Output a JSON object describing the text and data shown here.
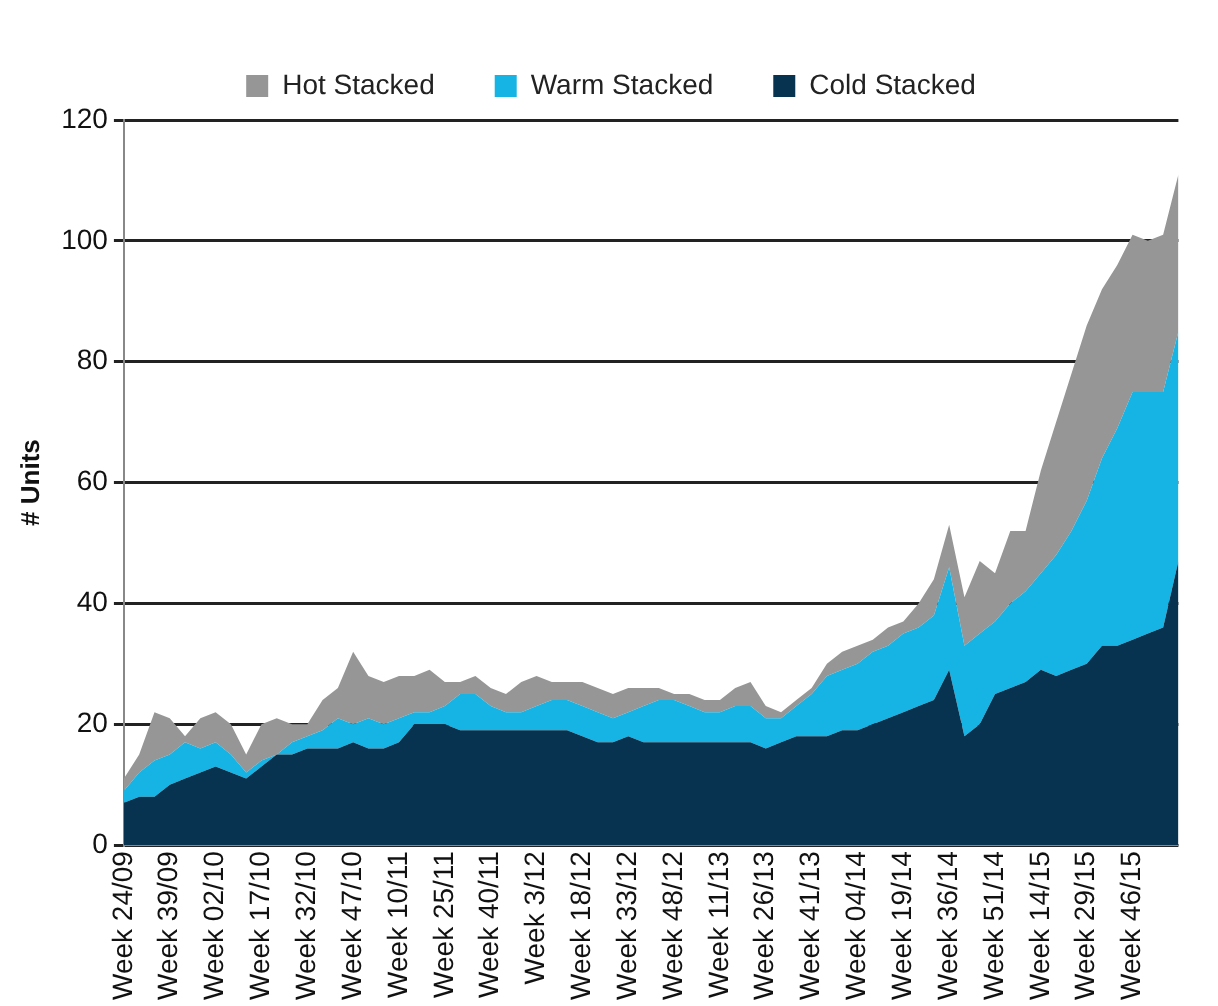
{
  "chart_data": {
    "type": "area",
    "stacked": true,
    "ylabel": "# Units",
    "categories": [
      "Week 24/09",
      null,
      null,
      "Week 39/09",
      null,
      null,
      "Week 02/10",
      null,
      null,
      "Week 17/10",
      null,
      null,
      "Week 32/10",
      null,
      null,
      "Week 47/10",
      null,
      null,
      "Week 10/11",
      null,
      null,
      "Week 25/11",
      null,
      null,
      "Week 40/11",
      null,
      null,
      "Week 3/12",
      null,
      null,
      "Week 18/12",
      null,
      null,
      "Week 33/12",
      null,
      null,
      "Week 48/12",
      null,
      null,
      "Week 11/13",
      null,
      null,
      "Week 26/13",
      null,
      null,
      "Week 41/13",
      null,
      null,
      "Week 04/14",
      null,
      null,
      "Week 19/14",
      null,
      null,
      "Week 36/14",
      null,
      null,
      "Week 51/14",
      null,
      null,
      "Week 14/15",
      null,
      null,
      "Week 29/15",
      null,
      null,
      "Week 46/15",
      null,
      null,
      null
    ],
    "series": [
      {
        "name": "Cold Stacked",
        "color": "#073350",
        "values": [
          7,
          8,
          8,
          10,
          11,
          12,
          13,
          12,
          11,
          13,
          15,
          15,
          16,
          16,
          16,
          17,
          16,
          16,
          17,
          20,
          20,
          20,
          19,
          19,
          19,
          19,
          19,
          19,
          19,
          19,
          18,
          17,
          17,
          18,
          17,
          17,
          17,
          17,
          17,
          17,
          17,
          17,
          16,
          17,
          18,
          18,
          18,
          19,
          19,
          20,
          21,
          22,
          23,
          24,
          29,
          18,
          20,
          25,
          26,
          27,
          29,
          28,
          29,
          30,
          33,
          33,
          34,
          35,
          36,
          47
        ]
      },
      {
        "name": "Warm Stacked",
        "color": "#16b4e4",
        "values": [
          2,
          4,
          6,
          5,
          6,
          4,
          4,
          3,
          1,
          1,
          0,
          2,
          2,
          3,
          5,
          3,
          5,
          4,
          4,
          2,
          2,
          3,
          6,
          6,
          4,
          3,
          3,
          4,
          5,
          5,
          5,
          5,
          4,
          4,
          6,
          7,
          7,
          6,
          5,
          5,
          6,
          6,
          5,
          4,
          5,
          7,
          10,
          10,
          11,
          12,
          12,
          13,
          13,
          14,
          17,
          15,
          15,
          12,
          14,
          15,
          16,
          20,
          23,
          27,
          31,
          36,
          41,
          40,
          39,
          38
        ]
      },
      {
        "name": "Hot Stacked",
        "color": "#969696",
        "values": [
          2,
          3,
          8,
          6,
          1,
          5,
          5,
          5,
          3,
          6,
          6,
          3,
          2,
          5,
          5,
          12,
          7,
          7,
          7,
          6,
          7,
          4,
          2,
          3,
          3,
          3,
          5,
          5,
          3,
          3,
          4,
          4,
          4,
          4,
          3,
          2,
          1,
          2,
          2,
          2,
          3,
          4,
          2,
          1,
          1,
          1,
          2,
          3,
          3,
          2,
          3,
          2,
          4,
          6,
          7,
          8,
          12,
          8,
          12,
          10,
          17,
          22,
          26,
          29,
          28,
          27,
          26,
          25,
          26,
          26
        ]
      }
    ],
    "ylim": [
      0,
      120
    ],
    "yticks": [
      0,
      20,
      40,
      60,
      80,
      100,
      120
    ],
    "grid": "y",
    "legend": "top"
  }
}
